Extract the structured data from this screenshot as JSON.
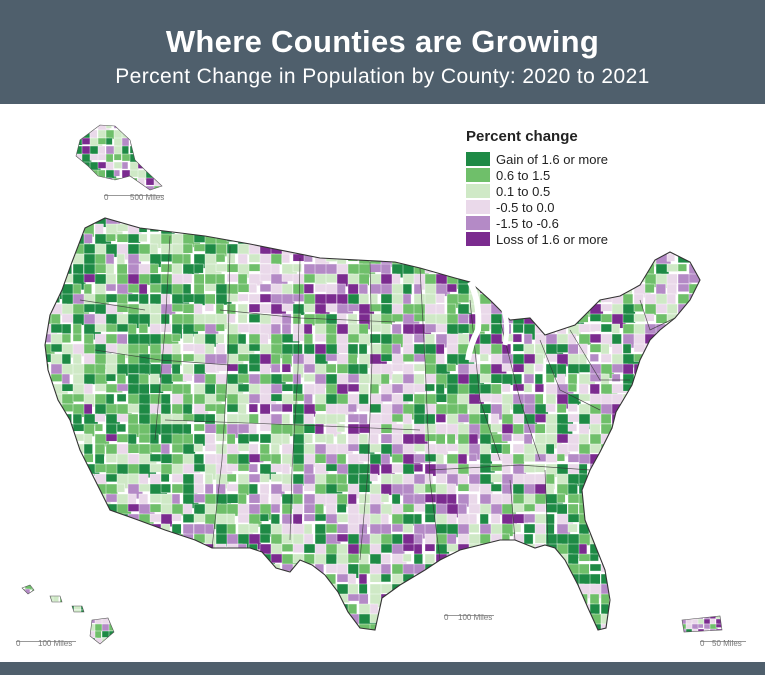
{
  "header": {
    "title": "Where Counties are Growing",
    "subtitle": "Percent Change in Population by County: 2020 to 2021"
  },
  "legend": {
    "title": "Percent change",
    "items": [
      {
        "label": "Gain of 1.6 or more",
        "color": "#1e8a45"
      },
      {
        "label": "0.6 to 1.5",
        "color": "#6fbf6a"
      },
      {
        "label": "0.1 to 0.5",
        "color": "#cfe9c6"
      },
      {
        "label": "-0.5 to 0.0",
        "color": "#ead9ea"
      },
      {
        "label": "-1.5 to -0.6",
        "color": "#b48ac6"
      },
      {
        "label": "Loss of 1.6 or more",
        "color": "#7b2b8f"
      }
    ]
  },
  "scales": {
    "alaska": {
      "zero": "0",
      "label": "500 Miles"
    },
    "hawaii": {
      "zero": "0",
      "label": "100 Miles"
    },
    "mainland": {
      "zero": "0",
      "label": "100 Miles"
    },
    "puerto_rico": {
      "zero": "0",
      "label": "50 Miles"
    }
  },
  "colors": {
    "header_background": "#4f5f6c",
    "boundary": "#ffffff",
    "state_border": "#333333"
  }
}
